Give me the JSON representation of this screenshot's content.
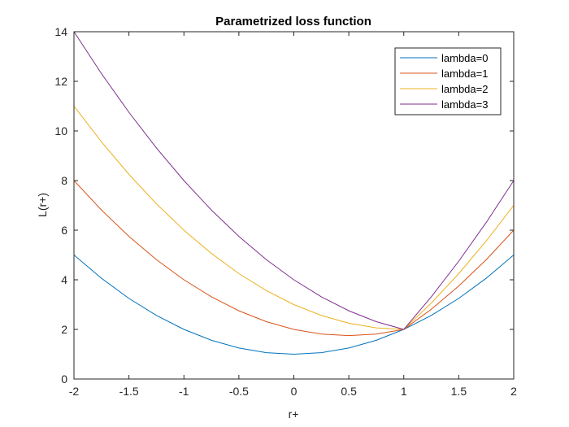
{
  "chart_data": {
    "type": "line",
    "title": "Parametrized loss function",
    "xlabel": "r+",
    "ylabel": "L(r+)",
    "xlim": [
      -2,
      2
    ],
    "ylim": [
      0,
      14
    ],
    "xticks": [
      -2,
      -1.5,
      -1,
      -0.5,
      0,
      0.5,
      1,
      1.5,
      2
    ],
    "yticks": [
      0,
      2,
      4,
      6,
      8,
      10,
      12,
      14
    ],
    "grid": false,
    "legend_position": "top-right",
    "x": [
      -2,
      -1.75,
      -1.5,
      -1.25,
      -1,
      -0.75,
      -0.5,
      -0.25,
      0,
      0.25,
      0.5,
      0.75,
      1,
      1.25,
      1.5,
      1.75,
      2
    ],
    "series": [
      {
        "name": "lambda=0",
        "color": "#0072BD",
        "values": [
          5,
          4.0625,
          3.25,
          2.5625,
          2,
          1.5625,
          1.25,
          1.0625,
          1,
          1.0625,
          1.25,
          1.5625,
          2,
          2.5625,
          3.25,
          4.0625,
          5
        ]
      },
      {
        "name": "lambda=1",
        "color": "#D95319",
        "values": [
          8,
          6.8125,
          5.75,
          4.8125,
          4,
          3.3125,
          2.75,
          2.3125,
          2,
          1.8125,
          1.75,
          1.8125,
          2,
          2.8125,
          3.75,
          4.8125,
          6
        ]
      },
      {
        "name": "lambda=2",
        "color": "#EDB120",
        "values": [
          11,
          9.5625,
          8.25,
          7.0625,
          6,
          5.0625,
          4.25,
          3.5625,
          3,
          2.5625,
          2.25,
          2.0625,
          2,
          3.0625,
          4.25,
          5.5625,
          7
        ]
      },
      {
        "name": "lambda=3",
        "color": "#7E2F8E",
        "values": [
          14,
          12.3125,
          10.75,
          9.3125,
          8,
          6.8125,
          5.75,
          4.8125,
          4,
          3.3125,
          2.75,
          2.3125,
          2,
          3.3125,
          4.75,
          6.3125,
          8
        ]
      }
    ]
  }
}
